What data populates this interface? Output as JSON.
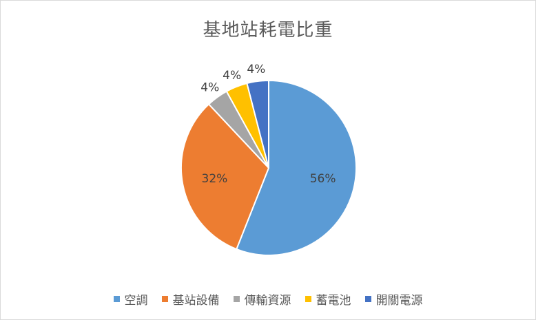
{
  "chart_data": {
    "type": "pie",
    "title": "基地站耗電比重",
    "categories": [
      "空調",
      "基站設備",
      "傳輸資源",
      "蓄電池",
      "開關電源"
    ],
    "values": [
      56,
      32,
      4,
      4,
      4
    ],
    "labels": [
      "56%",
      "32%",
      "4%",
      "4%",
      "4%"
    ],
    "colors": [
      "#5b9bd5",
      "#ed7d31",
      "#a5a5a5",
      "#ffc000",
      "#4472c4"
    ],
    "legend_position": "bottom"
  }
}
